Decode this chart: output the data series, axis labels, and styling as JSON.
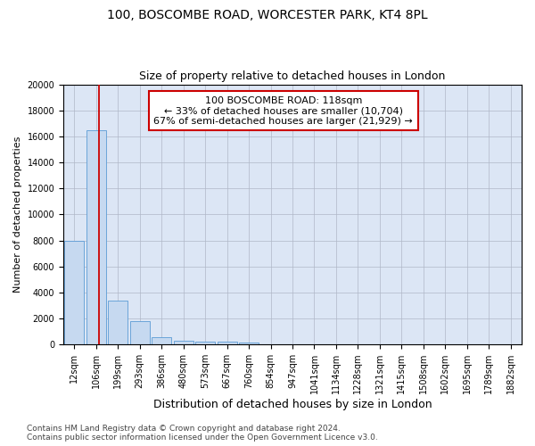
{
  "title1": "100, BOSCOMBE ROAD, WORCESTER PARK, KT4 8PL",
  "title2": "Size of property relative to detached houses in London",
  "xlabel": "Distribution of detached houses by size in London",
  "ylabel": "Number of detached properties",
  "categories": [
    "12sqm",
    "106sqm",
    "199sqm",
    "293sqm",
    "386sqm",
    "480sqm",
    "573sqm",
    "667sqm",
    "760sqm",
    "854sqm",
    "947sqm",
    "1041sqm",
    "1134sqm",
    "1228sqm",
    "1321sqm",
    "1415sqm",
    "1508sqm",
    "1602sqm",
    "1695sqm",
    "1789sqm",
    "1882sqm"
  ],
  "values": [
    8000,
    16500,
    3400,
    1800,
    550,
    300,
    250,
    200,
    150,
    0,
    0,
    0,
    0,
    0,
    0,
    0,
    0,
    0,
    0,
    0,
    0
  ],
  "bar_color": "#c6d9f0",
  "bar_edge_color": "#5b9bd5",
  "bar_alpha": 1.0,
  "grid_color": "#b0b8c8",
  "background_color": "#dce6f5",
  "vline_x": 1.15,
  "vline_color": "#cc0000",
  "annotation_line1": "100 BOSCOMBE ROAD: 118sqm",
  "annotation_line2": "← 33% of detached houses are smaller (10,704)",
  "annotation_line3": "67% of semi-detached houses are larger (21,929) →",
  "annotation_box_color": "#ffffff",
  "annotation_box_edge": "#cc0000",
  "footnote": "Contains HM Land Registry data © Crown copyright and database right 2024.\nContains public sector information licensed under the Open Government Licence v3.0.",
  "ylim": [
    0,
    20000
  ],
  "yticks": [
    0,
    2000,
    4000,
    6000,
    8000,
    10000,
    12000,
    14000,
    16000,
    18000,
    20000
  ],
  "title1_fontsize": 10,
  "title2_fontsize": 9,
  "xlabel_fontsize": 9,
  "ylabel_fontsize": 8,
  "tick_fontsize": 7,
  "annotation_fontsize": 8,
  "footnote_fontsize": 6.5
}
